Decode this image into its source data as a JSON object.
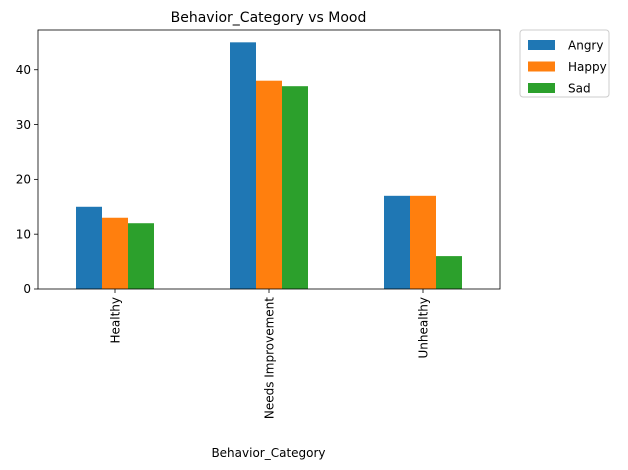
{
  "chart_data": {
    "type": "bar",
    "title": "Behavior_Category vs Mood",
    "xlabel": "Behavior_Category",
    "ylabel": "",
    "categories": [
      "Healthy",
      "Needs Improvement",
      "Unhealthy"
    ],
    "series": [
      {
        "name": "Angry",
        "color": "#1f77b4",
        "values": [
          15,
          45,
          17
        ]
      },
      {
        "name": "Happy",
        "color": "#ff7f0e",
        "values": [
          13,
          38,
          17
        ]
      },
      {
        "name": "Sad",
        "color": "#2ca02c",
        "values": [
          12,
          37,
          6
        ]
      }
    ],
    "ylim": [
      0,
      47.25
    ],
    "yticks": [
      0,
      10,
      20,
      30,
      40
    ],
    "grid": false,
    "legend_position": "outside-top-right"
  }
}
